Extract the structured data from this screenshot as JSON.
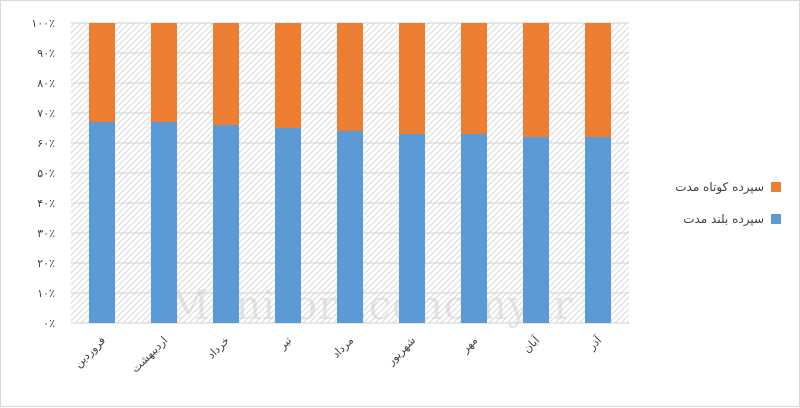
{
  "colors": {
    "long_term": "#5B9BD5",
    "short_term": "#ED7D31",
    "grid": "#d0d0d0",
    "hatch": "#cfcfcf"
  },
  "watermark": "MonitorEconomy.ir",
  "chart_data": {
    "type": "bar",
    "stacked": true,
    "percent": true,
    "categories": [
      "فروردین",
      "اردیبهشت",
      "خرداد",
      "تیر",
      "مرداد",
      "شهریور",
      "مهر",
      "آبان",
      "آذر"
    ],
    "series": [
      {
        "name": "سپرده بلند مدت",
        "color": "#5B9BD5",
        "values": [
          67,
          67,
          66,
          65,
          64,
          63,
          63,
          62,
          62
        ]
      },
      {
        "name": "سپرده کوتاه مدت",
        "color": "#ED7D31",
        "values": [
          33,
          33,
          34,
          35,
          36,
          37,
          37,
          38,
          38
        ]
      }
    ],
    "yticks": [
      "۰٪",
      "۱۰٪",
      "۲۰٪",
      "۳۰٪",
      "۴۰٪",
      "۵۰٪",
      "۶۰٪",
      "۷۰٪",
      "۸۰٪",
      "۹۰٪",
      "۱۰۰٪"
    ],
    "ylim": [
      0,
      100
    ],
    "legend_position": "right",
    "grid": true
  }
}
